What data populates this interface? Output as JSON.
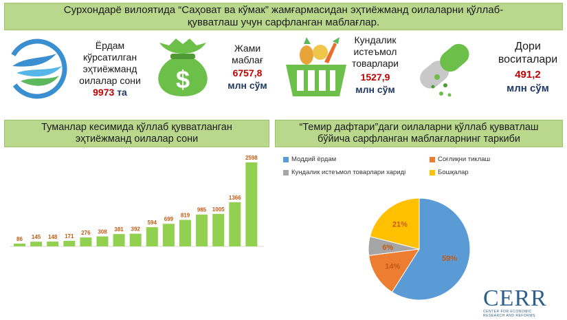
{
  "banner": {
    "line1": "Сурхондарё вилоятида “Саҳоват ва кўмак” жамғармасидан эҳтиёжманд оилаларни қўллаб-",
    "line2": "қувватлаш учун сарфланган маблағлар."
  },
  "kpis": {
    "families": {
      "l1": "Ёрдам",
      "l2": "кўрсатилган",
      "l3": "эҳтиёжманд",
      "l4": "оилалар сони",
      "value": "9973",
      "unit": "та"
    },
    "total": {
      "l1": "Жами",
      "l2": "маблағ",
      "value": "6757,8",
      "unit": "млн сўм"
    },
    "daily": {
      "l1": "Кундалик",
      "l2": "истеъмол",
      "l3": "товарлари",
      "value": "1527,9",
      "unit": "млн сўм"
    },
    "medicine": {
      "l1": "Дори",
      "l2": "воситалари",
      "value": "491,2",
      "unit": "млн сўм"
    }
  },
  "left_header": {
    "line1": "Туманлар кесимида қўллаб қувватланган",
    "line2": "эҳтиёжманд оилалар сони"
  },
  "right_header": {
    "line1": "“Темир дафтари”даги оилаларни қўллаб қувватлаш",
    "line2": "бўйича сарфланган маблағларнинг таркиби"
  },
  "logo": {
    "word": "CERR",
    "sub1": "CENTER FOR ECONOMIC",
    "sub2": "RESEARCH AND REFORMS"
  },
  "colors": {
    "green": "#92d050",
    "orange_label": "#c55a11",
    "blue": "#5b9bd5",
    "orange": "#ed7d31",
    "gray": "#a5a5a5",
    "yellow": "#ffc000",
    "banner": "#b9d88c"
  },
  "chart_data": [
    {
      "type": "bar",
      "values": [
        86,
        145,
        148,
        171,
        276,
        308,
        381,
        392,
        594,
        699,
        819,
        985,
        1005,
        1366,
        2598
      ],
      "data_labels": [
        "86",
        "145",
        "148",
        "171",
        "276",
        "308",
        "381",
        "392",
        "594",
        "699",
        "819",
        "985",
        "1005",
        "1366",
        "2598"
      ],
      "ylim": [
        0,
        2598
      ],
      "grid": false,
      "legend": "none"
    },
    {
      "type": "pie",
      "categories": [
        "Моддий ёрдам",
        "Соғлиқни тиклаш",
        "Кундалик истеъмол товарлари харидi",
        "Бошқалар"
      ],
      "values": [
        59,
        14,
        6,
        21
      ],
      "data_labels": [
        "59%",
        "14%",
        "6%",
        "21%"
      ],
      "legend": "top"
    }
  ]
}
